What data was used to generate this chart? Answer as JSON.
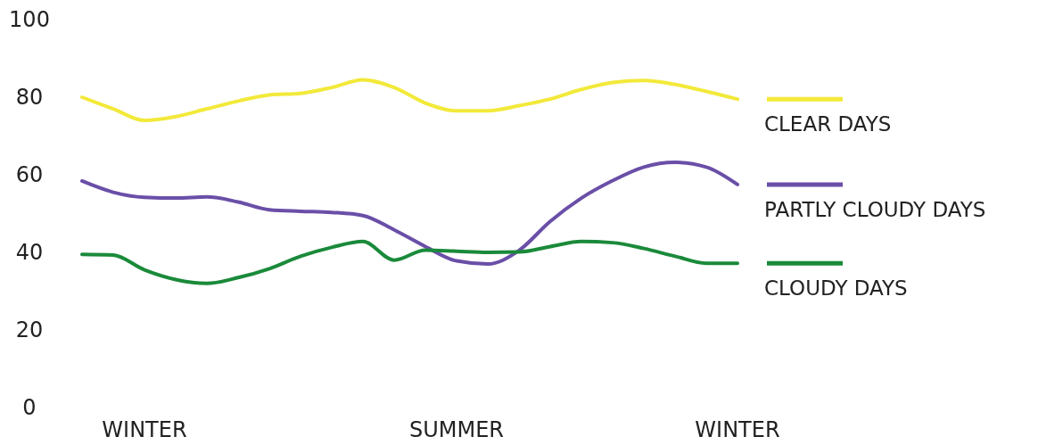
{
  "chart_data": {
    "type": "line",
    "ylim": [
      0,
      100
    ],
    "categories": [
      null,
      null,
      "WINTER",
      null,
      null,
      null,
      null,
      null,
      null,
      null,
      null,
      null,
      "SUMMER",
      null,
      null,
      null,
      null,
      null,
      null,
      null,
      null,
      "WINTER"
    ],
    "yticks": [
      0,
      20,
      40,
      60,
      80,
      100
    ],
    "grid": false,
    "legend": "right",
    "marker": "none",
    "line_style": "solid",
    "series": [
      {
        "name": "CLEAR DAYS",
        "color": "#f2e93a",
        "values": [
          80,
          77,
          74,
          75,
          77,
          79,
          80.6,
          81,
          82.5,
          84.5,
          82.5,
          78.5,
          76.5,
          76.5,
          77.8,
          79.5,
          82,
          83.8,
          84.3,
          83.3,
          81.5,
          79.5
        ]
      },
      {
        "name": "PARTLY CLOUDY DAYS",
        "color": "#6a4fa8",
        "values": [
          58.4,
          55.5,
          54.2,
          54,
          54.3,
          53,
          51,
          50.6,
          50.3,
          49.5,
          45.8,
          41.5,
          37.8,
          37,
          40.5,
          48,
          54,
          58.5,
          62,
          63.2,
          62,
          57.5
        ]
      },
      {
        "name": "CLOUDY DAYS",
        "color": "#1a8a3a",
        "values": [
          39.5,
          39.3,
          35.5,
          33,
          32,
          33.5,
          35.8,
          39,
          41.3,
          42.8,
          38,
          40.6,
          40.3,
          40,
          40.1,
          41.5,
          42.8,
          42.5,
          41,
          39,
          37.2,
          37.2
        ]
      }
    ]
  }
}
